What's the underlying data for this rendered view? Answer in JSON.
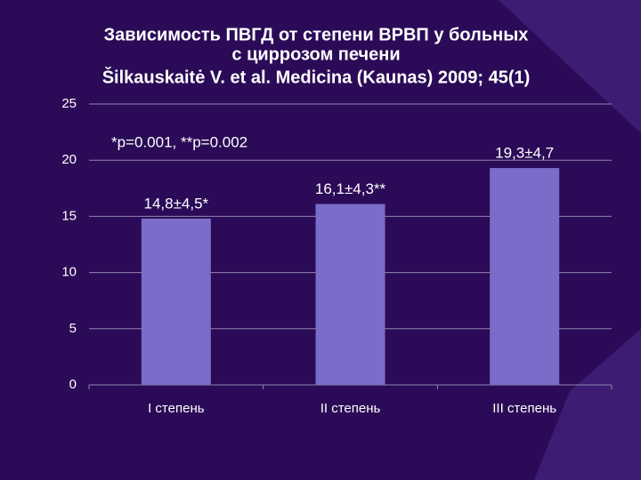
{
  "chart_data": {
    "type": "bar",
    "title": [
      "Зависимость ПВГД от степени ВРВП у больных",
      "с циррозом печени"
    ],
    "subtitle": "Šilkauskaitė V. et al. Medicina (Kaunas) 2009; 45(1)",
    "annotation": "*p=0.001, **p=0.002",
    "categories": [
      "I степень",
      "II степень",
      "III степень"
    ],
    "values": [
      14.8,
      16.1,
      19.3
    ],
    "value_labels": [
      "14,8±4,5*",
      "16,1±4,3**",
      "19,3±4,7"
    ],
    "color": "#7b6cc9",
    "ylim": [
      0,
      25
    ],
    "yticks": [
      0,
      5,
      10,
      15,
      20,
      25
    ],
    "grid": true
  }
}
